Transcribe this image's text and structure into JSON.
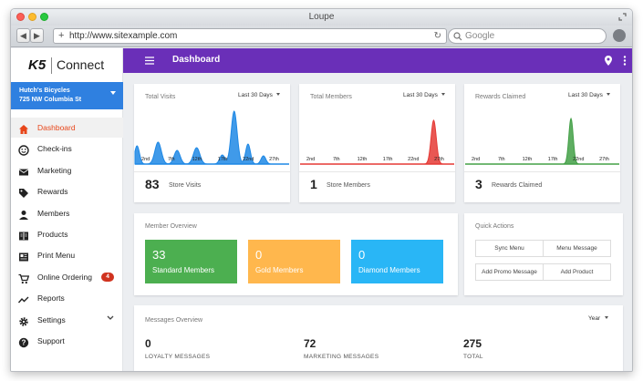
{
  "browser": {
    "title": "Loupe",
    "url": "http://www.sitexample.com",
    "search_placeholder": "Google",
    "back": "◀",
    "forward": "▶",
    "plus": "+"
  },
  "sidebar": {
    "logo_k5": "K5",
    "logo_connect": "Connect",
    "store_name": "Hutch's Bicycles",
    "store_address": "725 NW Columbia St",
    "items": [
      {
        "label": "Dashboard",
        "icon": "home-icon"
      },
      {
        "label": "Check-ins",
        "icon": "smiley-icon"
      },
      {
        "label": "Marketing",
        "icon": "mail-icon"
      },
      {
        "label": "Rewards",
        "icon": "tag-icon"
      },
      {
        "label": "Members",
        "icon": "person-icon"
      },
      {
        "label": "Products",
        "icon": "book-icon"
      },
      {
        "label": "Print Menu",
        "icon": "print-menu-icon"
      },
      {
        "label": "Online Ordering",
        "icon": "cart-icon",
        "badge": "4"
      },
      {
        "label": "Reports",
        "icon": "trend-icon"
      },
      {
        "label": "Settings",
        "icon": "gear-icon"
      },
      {
        "label": "Support",
        "icon": "help-icon"
      }
    ]
  },
  "header": {
    "title": "Dashboard"
  },
  "stats": [
    {
      "title": "Total Visits",
      "range": "Last 30 Days",
      "count": "83",
      "label": "Store Visits",
      "color": "#1e88e5",
      "ticks": [
        "2nd",
        "7th",
        "12th",
        "17th",
        "22nd",
        "27th"
      ]
    },
    {
      "title": "Total Members",
      "range": "Last 30 Days",
      "count": "1",
      "label": "Store Members",
      "color": "#e53935",
      "ticks": [
        "2nd",
        "7th",
        "12th",
        "17th",
        "22nd",
        "27th"
      ]
    },
    {
      "title": "Rewards Claimed",
      "range": "Last 30 Days",
      "count": "3",
      "label": "Rewards Claimed",
      "color": "#43a047",
      "ticks": [
        "2nd",
        "7th",
        "12th",
        "17th",
        "22nd",
        "27th"
      ]
    }
  ],
  "member_overview": {
    "title": "Member Overview",
    "tiles": [
      {
        "count": "33",
        "label": "Standard Members",
        "color": "#4caf50"
      },
      {
        "count": "0",
        "label": "Gold Members",
        "color": "#ffb74d"
      },
      {
        "count": "0",
        "label": "Diamond Members",
        "color": "#29b6f6"
      }
    ]
  },
  "quick_actions": {
    "title": "Quick Actions",
    "buttons": [
      "Sync Menu",
      "Menu Message",
      "Add Promo Message",
      "Add Product"
    ]
  },
  "messages_overview": {
    "title": "Messages Overview",
    "range": "Year",
    "stats": [
      {
        "count": "0",
        "label": "LOYALTY MESSAGES"
      },
      {
        "count": "72",
        "label": "MARKETING MESSAGES"
      },
      {
        "count": "275",
        "label": "TOTAL"
      }
    ]
  },
  "colors": {
    "accent": "#6a2fb8",
    "store_bar": "#2f80e0",
    "active": "#e8461a"
  }
}
